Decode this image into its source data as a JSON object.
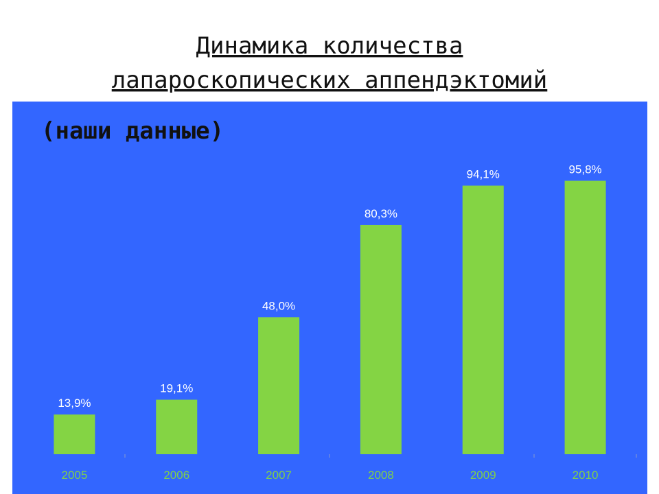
{
  "chart_data": {
    "type": "bar",
    "title": [
      "Динамика количества",
      "лапароскопических аппендэктомий"
    ],
    "subtitle": "(наши данные)",
    "categories": [
      "2005",
      "2006",
      "2007",
      "2008",
      "2009",
      "2010"
    ],
    "values": [
      13.9,
      19.1,
      48.0,
      80.3,
      94.1,
      95.8
    ],
    "value_labels": [
      "13,9%",
      "19,1%",
      "48,0%",
      "80,3%",
      "94,1%",
      "95,8%"
    ],
    "color": "#84d444",
    "ylim": [
      0,
      100
    ]
  }
}
